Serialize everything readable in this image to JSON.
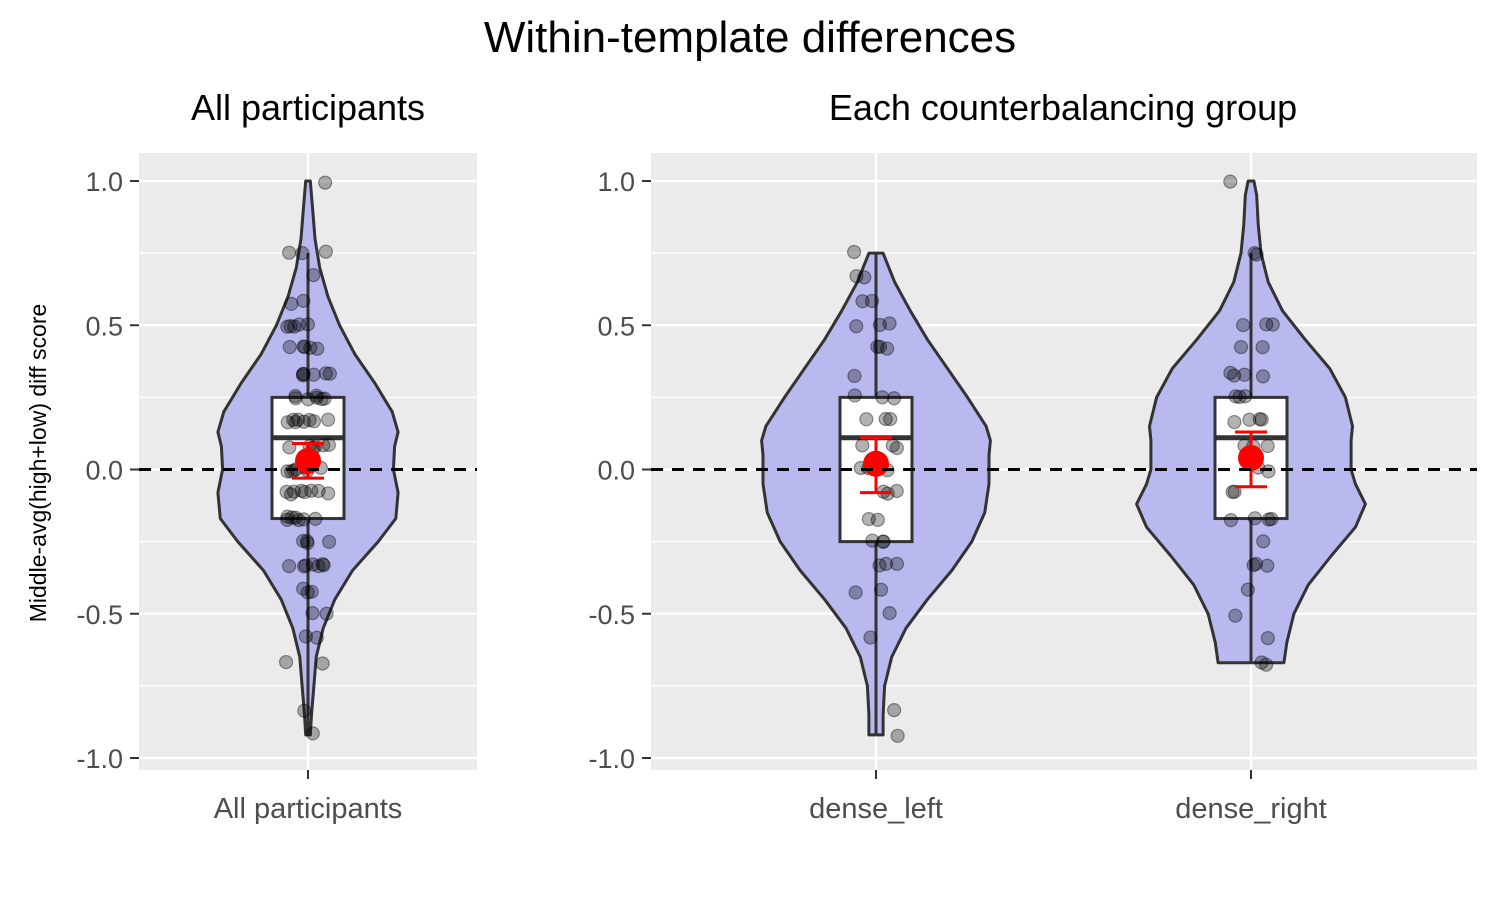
{
  "figure_title": "Within-template differences",
  "y_axis_label": "Middle-avg(high+low) diff score",
  "colors": {
    "panel_background": "#EBEBEB",
    "grid": "#FFFFFF",
    "violin_fill": "#B9B9F0",
    "violin_stroke": "#333333",
    "box_fill": "#FFFFFF",
    "point": "#000000",
    "mean_marker": "#FF0000",
    "reference_line": "#000000"
  },
  "chart_data": [
    {
      "type": "violin",
      "title": "All participants",
      "xlabel": "",
      "ylabel": "Middle-avg(high+low) diff score",
      "ylim": [
        -1.0,
        1.0
      ],
      "yticks": [
        -1.0,
        -0.5,
        0.0,
        0.5,
        1.0
      ],
      "ytick_labels": [
        "-1.0",
        "-0.5",
        "0.0",
        "0.5",
        "1.0"
      ],
      "reference_line": 0.0,
      "categories": [
        "All participants"
      ],
      "groups": [
        {
          "category": "All participants",
          "box": {
            "lower_whisker": -0.92,
            "q1": -0.17,
            "median": 0.11,
            "q3": 0.25,
            "upper_whisker": 0.75
          },
          "mean": 0.03,
          "ci": [
            -0.03,
            0.09
          ],
          "violin": {
            "y": [
              -0.92,
              -0.85,
              -0.75,
              -0.65,
              -0.55,
              -0.45,
              -0.35,
              -0.25,
              -0.17,
              -0.08,
              0.0,
              0.08,
              0.13,
              0.2,
              0.3,
              0.4,
              0.5,
              0.6,
              0.7,
              0.8,
              0.9,
              1.0
            ],
            "half_width": [
              0.02,
              0.03,
              0.05,
              0.07,
              0.13,
              0.23,
              0.38,
              0.6,
              0.75,
              0.77,
              0.73,
              0.74,
              0.77,
              0.72,
              0.57,
              0.4,
              0.27,
              0.17,
              0.1,
              0.06,
              0.04,
              0.02
            ]
          },
          "points": [
            1.0,
            0.75,
            0.75,
            0.75,
            0.67,
            0.58,
            0.58,
            0.5,
            0.5,
            0.5,
            0.5,
            0.5,
            0.42,
            0.42,
            0.42,
            0.42,
            0.42,
            0.33,
            0.33,
            0.33,
            0.33,
            0.33,
            0.33,
            0.25,
            0.25,
            0.25,
            0.25,
            0.25,
            0.25,
            0.25,
            0.17,
            0.17,
            0.17,
            0.17,
            0.17,
            0.17,
            0.17,
            0.17,
            0.08,
            0.08,
            0.08,
            0.08,
            0.08,
            0.08,
            0.0,
            0.0,
            0.0,
            0.0,
            0.0,
            0.0,
            0.0,
            -0.08,
            -0.08,
            -0.08,
            -0.08,
            -0.08,
            -0.08,
            -0.08,
            -0.08,
            -0.17,
            -0.17,
            -0.17,
            -0.17,
            -0.17,
            -0.17,
            -0.17,
            -0.25,
            -0.25,
            -0.25,
            -0.25,
            -0.33,
            -0.33,
            -0.33,
            -0.33,
            -0.33,
            -0.33,
            -0.33,
            -0.42,
            -0.42,
            -0.42,
            -0.5,
            -0.5,
            -0.58,
            -0.58,
            -0.67,
            -0.67,
            -0.83,
            -0.92
          ]
        }
      ]
    },
    {
      "type": "violin",
      "title": "Each counterbalancing group",
      "xlabel": "",
      "ylabel": "",
      "ylim": [
        -1.0,
        1.0
      ],
      "yticks": [
        -1.0,
        -0.5,
        0.0,
        0.5,
        1.0
      ],
      "ytick_labels": [
        "-1.0",
        "-0.5",
        "0.0",
        "0.5",
        "1.0"
      ],
      "reference_line": 0.0,
      "categories": [
        "dense_left",
        "dense_right"
      ],
      "groups": [
        {
          "category": "dense_left",
          "box": {
            "lower_whisker": -0.92,
            "q1": -0.25,
            "median": 0.11,
            "q3": 0.25,
            "upper_whisker": 0.75
          },
          "mean": 0.02,
          "ci": [
            -0.08,
            0.11
          ],
          "violin": {
            "y": [
              -0.92,
              -0.85,
              -0.75,
              -0.65,
              -0.55,
              -0.45,
              -0.35,
              -0.25,
              -0.15,
              -0.05,
              0.05,
              0.1,
              0.15,
              0.25,
              0.35,
              0.45,
              0.55,
              0.65,
              0.75
            ],
            "half_width": [
              0.05,
              0.05,
              0.06,
              0.11,
              0.21,
              0.36,
              0.53,
              0.67,
              0.76,
              0.79,
              0.79,
              0.8,
              0.77,
              0.64,
              0.5,
              0.36,
              0.24,
              0.13,
              0.05
            ]
          },
          "points": [
            0.75,
            0.67,
            0.67,
            0.58,
            0.58,
            0.5,
            0.5,
            0.5,
            0.42,
            0.42,
            0.42,
            0.33,
            0.25,
            0.25,
            0.25,
            0.17,
            0.17,
            0.17,
            0.08,
            0.08,
            0.08,
            0.0,
            0.0,
            0.0,
            -0.08,
            -0.08,
            -0.08,
            -0.17,
            -0.17,
            -0.25,
            -0.25,
            -0.25,
            -0.33,
            -0.33,
            -0.33,
            -0.42,
            -0.42,
            -0.5,
            -0.58,
            -0.83,
            -0.92
          ]
        },
        {
          "category": "dense_right",
          "box": {
            "lower_whisker": -0.67,
            "q1": -0.17,
            "median": 0.11,
            "q3": 0.25,
            "upper_whisker": 0.75
          },
          "mean": 0.04,
          "ci": [
            -0.06,
            0.13
          ],
          "violin": {
            "y": [
              -0.67,
              -0.6,
              -0.5,
              -0.4,
              -0.3,
              -0.2,
              -0.12,
              -0.05,
              0.0,
              0.1,
              0.15,
              0.25,
              0.35,
              0.45,
              0.55,
              0.65,
              0.75,
              0.85,
              0.95,
              1.0
            ],
            "half_width": [
              0.23,
              0.25,
              0.3,
              0.4,
              0.56,
              0.73,
              0.8,
              0.73,
              0.7,
              0.7,
              0.71,
              0.66,
              0.55,
              0.38,
              0.22,
              0.12,
              0.07,
              0.05,
              0.04,
              0.02
            ]
          },
          "points": [
            1.0,
            0.75,
            0.75,
            0.5,
            0.5,
            0.5,
            0.42,
            0.42,
            0.33,
            0.33,
            0.33,
            0.33,
            0.25,
            0.25,
            0.25,
            0.17,
            0.17,
            0.17,
            0.17,
            0.08,
            0.08,
            0.08,
            0.0,
            0.0,
            -0.08,
            -0.08,
            -0.17,
            -0.17,
            -0.17,
            -0.17,
            -0.25,
            -0.33,
            -0.33,
            -0.33,
            -0.42,
            -0.5,
            -0.58,
            -0.67,
            -0.67
          ]
        }
      ]
    }
  ]
}
